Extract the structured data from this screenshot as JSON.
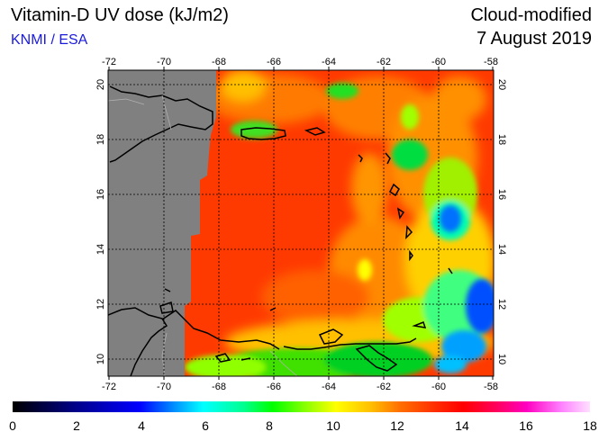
{
  "header": {
    "title": "Vitamin-D UV dose (kJ/m2)",
    "credit": "KNMI / ESA",
    "product": "Cloud-modified",
    "date": "7 August 2019"
  },
  "map": {
    "lon_ticks": [
      "-72",
      "-70",
      "-68",
      "-66",
      "-64",
      "-62",
      "-60",
      "-58"
    ],
    "lat_ticks": [
      "10",
      "12",
      "14",
      "16",
      "18",
      "20"
    ]
  },
  "colorbar": {
    "ticks": [
      "0",
      "2",
      "4",
      "6",
      "8",
      "10",
      "12",
      "14",
      "16",
      "18"
    ],
    "range": [
      0,
      18
    ]
  },
  "colors": {
    "no_data": "#808080",
    "dominant": "#ff3000",
    "credit_text": "#1a1adc"
  }
}
